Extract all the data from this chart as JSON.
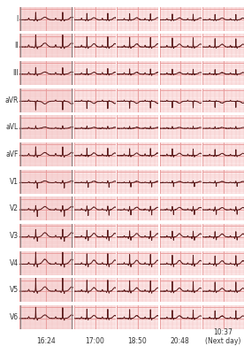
{
  "leads": [
    "I",
    "II",
    "III",
    "aVR",
    "aVL",
    "aVF",
    "V1",
    "V2",
    "V3",
    "V4",
    "V5",
    "V6"
  ],
  "times": [
    "16:24",
    "17:00",
    "18:50",
    "20:48",
    "10:37\n(Next day)"
  ],
  "bg_color": "#f9e8e8",
  "grid_minor_color": "#f5c0c0",
  "grid_major_color": "#e89898",
  "ecg_color": "#5a1a1a",
  "label_color": "#333333",
  "fig_bg": "#ffffff",
  "cell_bg": "#fce8e8",
  "col0_bg": "#f7d8d8"
}
